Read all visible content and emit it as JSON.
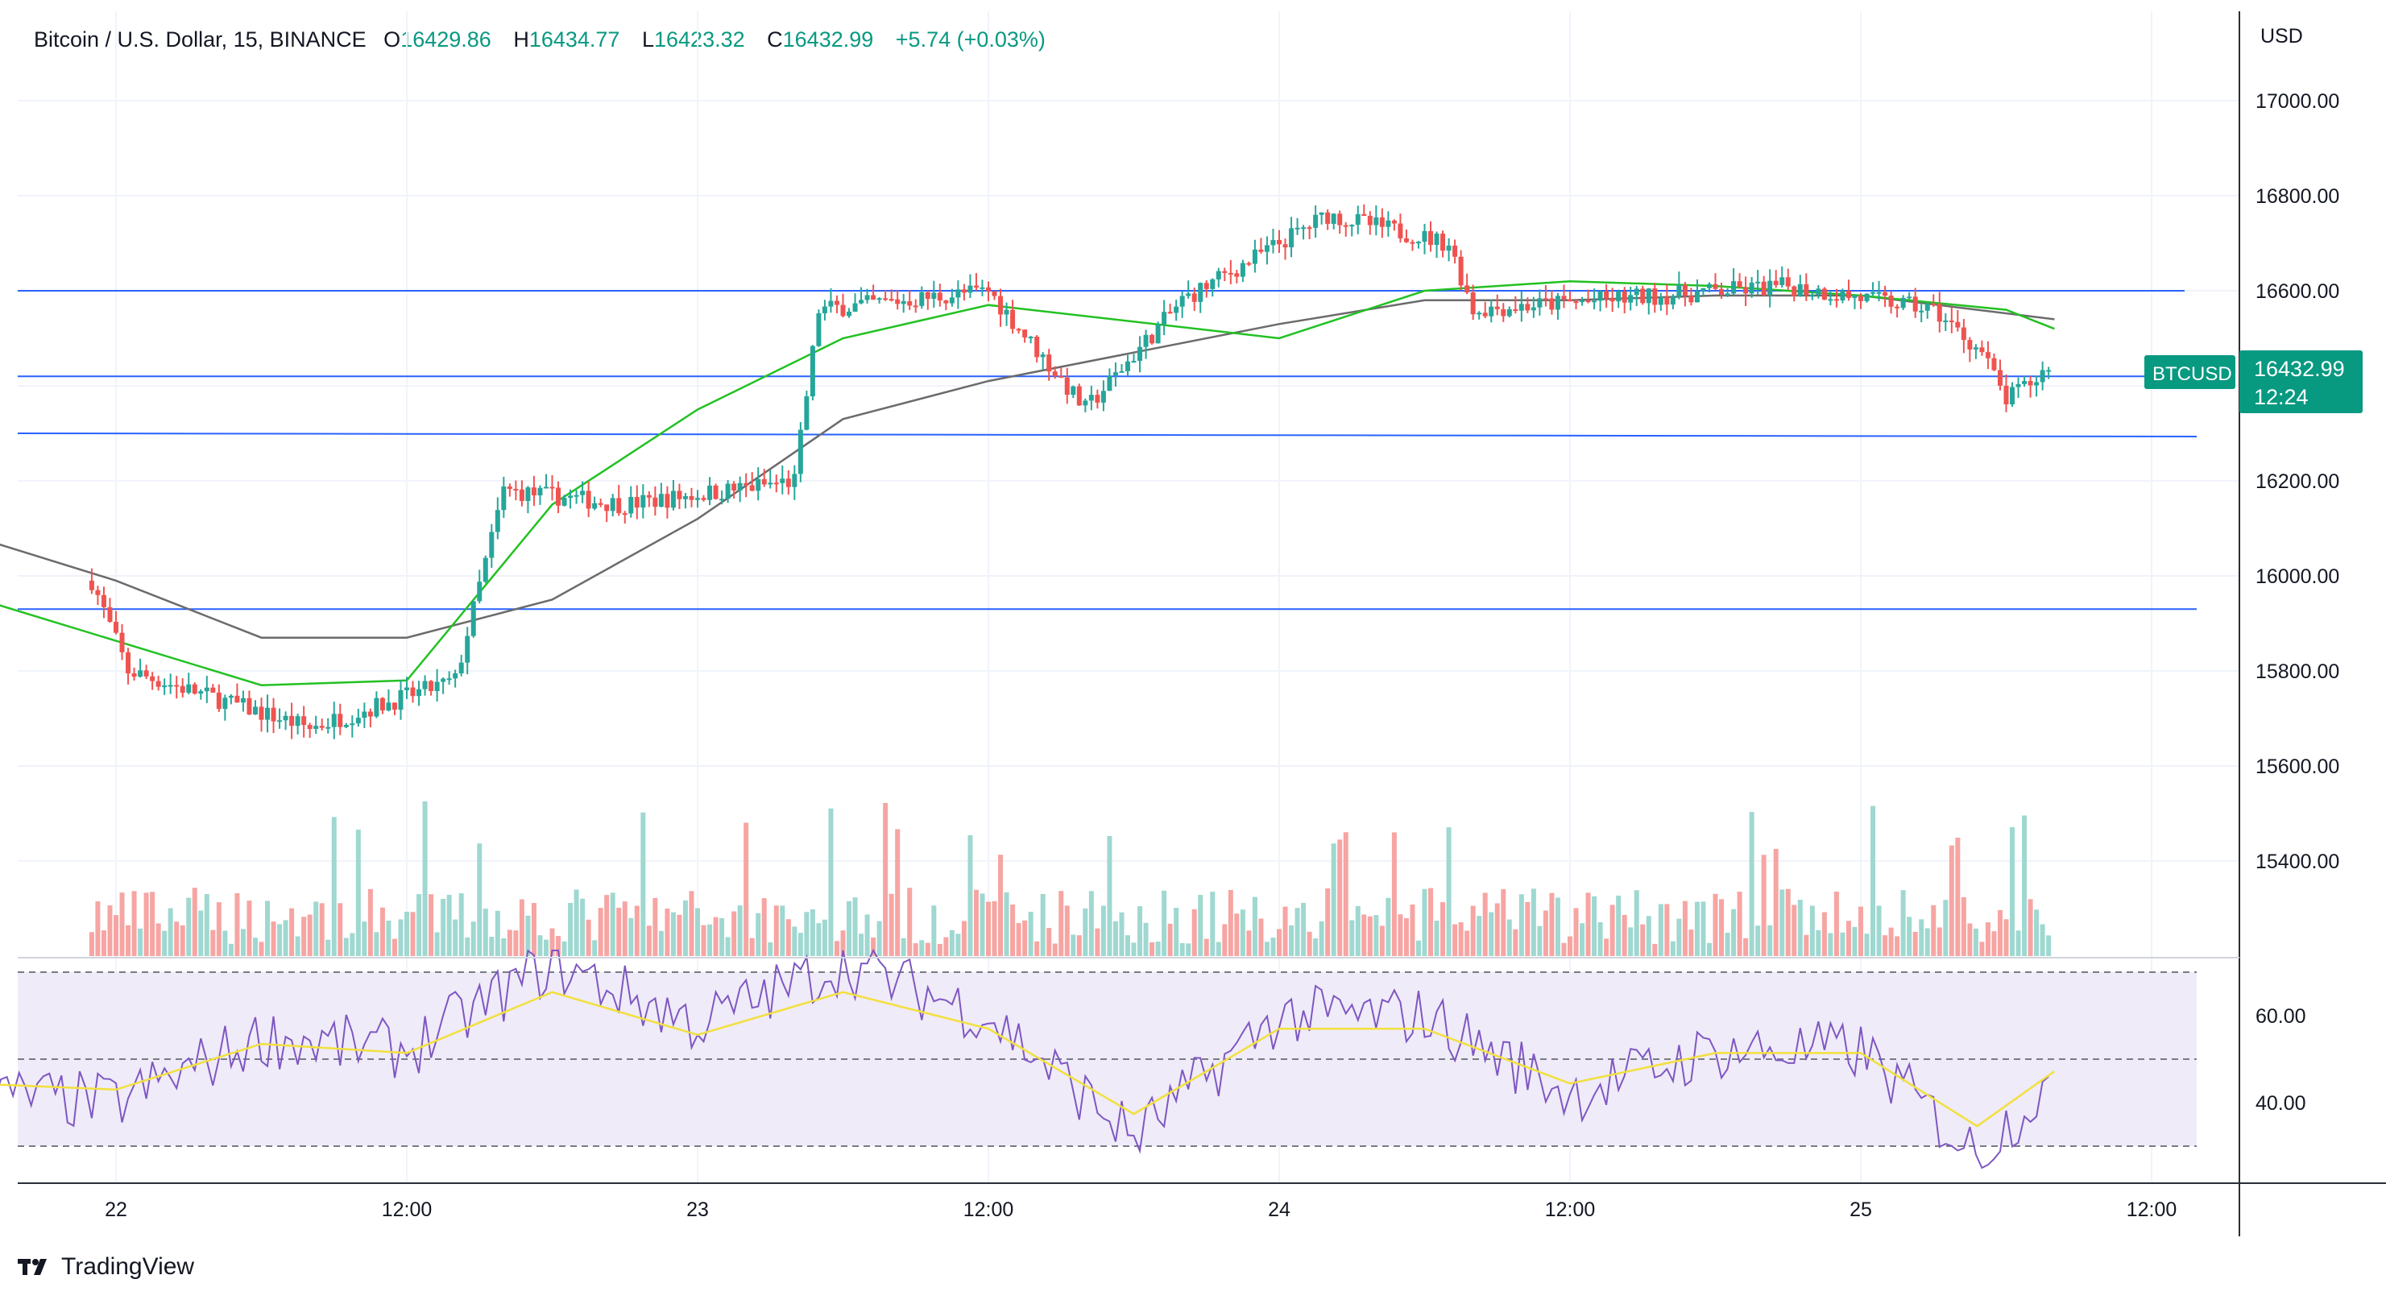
{
  "legend": {
    "symbol": "Bitcoin / U.S. Dollar, 15, BINANCE",
    "o_label": "O",
    "o_value": "16429.86",
    "h_label": "H",
    "h_value": "16434.77",
    "l_label": "L",
    "l_value": "16423.32",
    "c_label": "C",
    "c_value": "16432.99",
    "change": "+5.74 (+0.03%)"
  },
  "price_axis": {
    "currency": "USD",
    "labels": [
      "17000.00",
      "16800.00",
      "16600.00",
      "16400.00",
      "16200.00",
      "16000.00",
      "15800.00",
      "15600.00",
      "15400.00"
    ]
  },
  "rsi_axis": {
    "labels": [
      "60.00",
      "40.00"
    ]
  },
  "time_axis": {
    "labels": [
      "22",
      "12:00",
      "23",
      "12:00",
      "24",
      "12:00",
      "25",
      "12:00"
    ]
  },
  "price_tag": {
    "symbol": "BTCUSD",
    "price": "16432.99",
    "countdown": "12:24"
  },
  "brand": {
    "name": "TradingView"
  },
  "colors": {
    "up": "#26a69a",
    "down": "#ef5350",
    "ma_fast": "#22c122",
    "ma_slow": "#6b6b6b",
    "hline": "#2962ff",
    "rsi_line": "#7e57c2",
    "rsi_ma": "#f2e03d",
    "rsi_band": "#efebf8"
  },
  "chart_data": {
    "type": "candlestick",
    "symbol": "BTCUSD",
    "interval": "15",
    "exchange": "BINANCE",
    "x_labels": [
      "22",
      "12:00",
      "23",
      "12:00",
      "24",
      "12:00",
      "25",
      "12:00"
    ],
    "price_range": [
      15200,
      17200
    ],
    "horizontal_levels": [
      16600,
      16420,
      16300,
      15930
    ],
    "key_points": [
      {
        "time": "21 23:00",
        "price": 15990
      },
      {
        "time": "22 00:30",
        "price": 15800
      },
      {
        "time": "22 08:00",
        "price": 15680
      },
      {
        "time": "22 14:00",
        "price": 15780
      },
      {
        "time": "22 16:00",
        "price": 16180
      },
      {
        "time": "22 21:00",
        "price": 16150
      },
      {
        "time": "23 04:00",
        "price": 16200
      },
      {
        "time": "23 05:00",
        "price": 16560
      },
      {
        "time": "23 12:00",
        "price": 16600
      },
      {
        "time": "23 16:00",
        "price": 16350
      },
      {
        "time": "23 20:00",
        "price": 16580
      },
      {
        "time": "24 02:00",
        "price": 16760
      },
      {
        "time": "24 07:00",
        "price": 16700
      },
      {
        "time": "24 08:00",
        "price": 16560
      },
      {
        "time": "24 21:00",
        "price": 16610
      },
      {
        "time": "25 03:00",
        "price": 16560
      },
      {
        "time": "25 05:00",
        "price": 16470
      },
      {
        "time": "25 06:00",
        "price": 16370
      },
      {
        "time": "25 07:45",
        "price": 16433
      }
    ],
    "last": {
      "open": 16429.86,
      "high": 16434.77,
      "low": 16423.32,
      "close": 16432.99,
      "change": 5.74,
      "change_pct": 0.03
    },
    "ma_fast_path": [
      [
        21.5,
        16050
      ],
      [
        22.25,
        15770
      ],
      [
        22.5,
        15780
      ],
      [
        22.75,
        16150
      ],
      [
        23.0,
        16350
      ],
      [
        23.25,
        16500
      ],
      [
        23.5,
        16570
      ],
      [
        24.0,
        16500
      ],
      [
        24.25,
        16600
      ],
      [
        24.5,
        16620
      ],
      [
        24.75,
        16610
      ],
      [
        25.0,
        16590
      ],
      [
        25.25,
        16560
      ],
      [
        25.333,
        16520
      ]
    ],
    "ma_slow_path": [
      [
        21.5,
        16180
      ],
      [
        22.0,
        15990
      ],
      [
        22.25,
        15870
      ],
      [
        22.5,
        15870
      ],
      [
        22.75,
        15950
      ],
      [
        23.0,
        16120
      ],
      [
        23.25,
        16330
      ],
      [
        23.5,
        16410
      ],
      [
        24.0,
        16530
      ],
      [
        24.25,
        16580
      ],
      [
        24.5,
        16580
      ],
      [
        24.75,
        16590
      ],
      [
        25.0,
        16590
      ],
      [
        25.333,
        16540
      ]
    ],
    "rsi": {
      "levels": [
        70,
        50,
        30
      ],
      "y_range": [
        25,
        75
      ],
      "current": 46,
      "key_points": [
        [
          21.5,
          44
        ],
        [
          22.0,
          40
        ],
        [
          22.25,
          55
        ],
        [
          22.5,
          52
        ],
        [
          22.75,
          72
        ],
        [
          23.0,
          58
        ],
        [
          23.25,
          72
        ],
        [
          23.5,
          60
        ],
        [
          23.75,
          32
        ],
        [
          24.0,
          60
        ],
        [
          24.25,
          60
        ],
        [
          24.5,
          42
        ],
        [
          24.75,
          52
        ],
        [
          25.0,
          52
        ],
        [
          25.2,
          28
        ],
        [
          25.333,
          46
        ]
      ]
    }
  }
}
